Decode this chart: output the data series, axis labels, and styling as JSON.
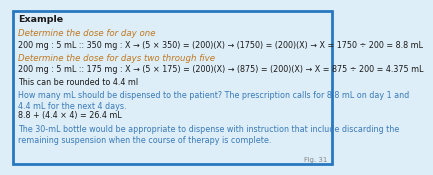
{
  "background_color": "#ddeef8",
  "border_color": "#2878c0",
  "title": "Example",
  "title_color": "#1a1a1a",
  "title_fontsize": 6.8,
  "lines": [
    {
      "text": "Determine the dose for day one",
      "style": "italic",
      "color": "#c07820",
      "size": 6.2
    },
    {
      "text": "200 mg : 5 mL :: 350 mg : X → (5 × 350) = (200)(X) → (1750) = (200)(X) → X = 1750 ÷ 200 = 8.8 mL",
      "style": "normal",
      "color": "#1a1a1a",
      "size": 5.8
    },
    {
      "text": "Determine the dose for days two through five",
      "style": "italic",
      "color": "#c07820",
      "size": 6.2
    },
    {
      "text": "200 mg : 5 mL :: 175 mg : X → (5 × 175) = (200)(X) → (875) = (200)(X) → X = 875 ÷ 200 = 4.375 mL",
      "style": "normal",
      "color": "#1a1a1a",
      "size": 5.8
    },
    {
      "text": "This can be rounded to 4.4 ml",
      "style": "normal",
      "color": "#1a1a1a",
      "size": 5.8
    },
    {
      "text": "How many mL should be dispensed to the patient? The prescription calls for 8.8 mL on day 1 and\n4.4 mL for the next 4 days.",
      "style": "normal",
      "color": "#3a7ab8",
      "size": 5.8
    },
    {
      "text": "8.8 + (4.4 × 4) = 26.4 mL",
      "style": "normal",
      "color": "#1a1a1a",
      "size": 5.8
    },
    {
      "text": "The 30-mL bottle would be appropriate to dispense with instruction that include discarding the\nremaining suspension when the course of therapy is complete.",
      "style": "normal",
      "color": "#3a7ab8",
      "size": 5.8
    }
  ],
  "fig31_label": "Fig. 31",
  "fig31_color": "#888888",
  "fig31_fontsize": 5.0
}
